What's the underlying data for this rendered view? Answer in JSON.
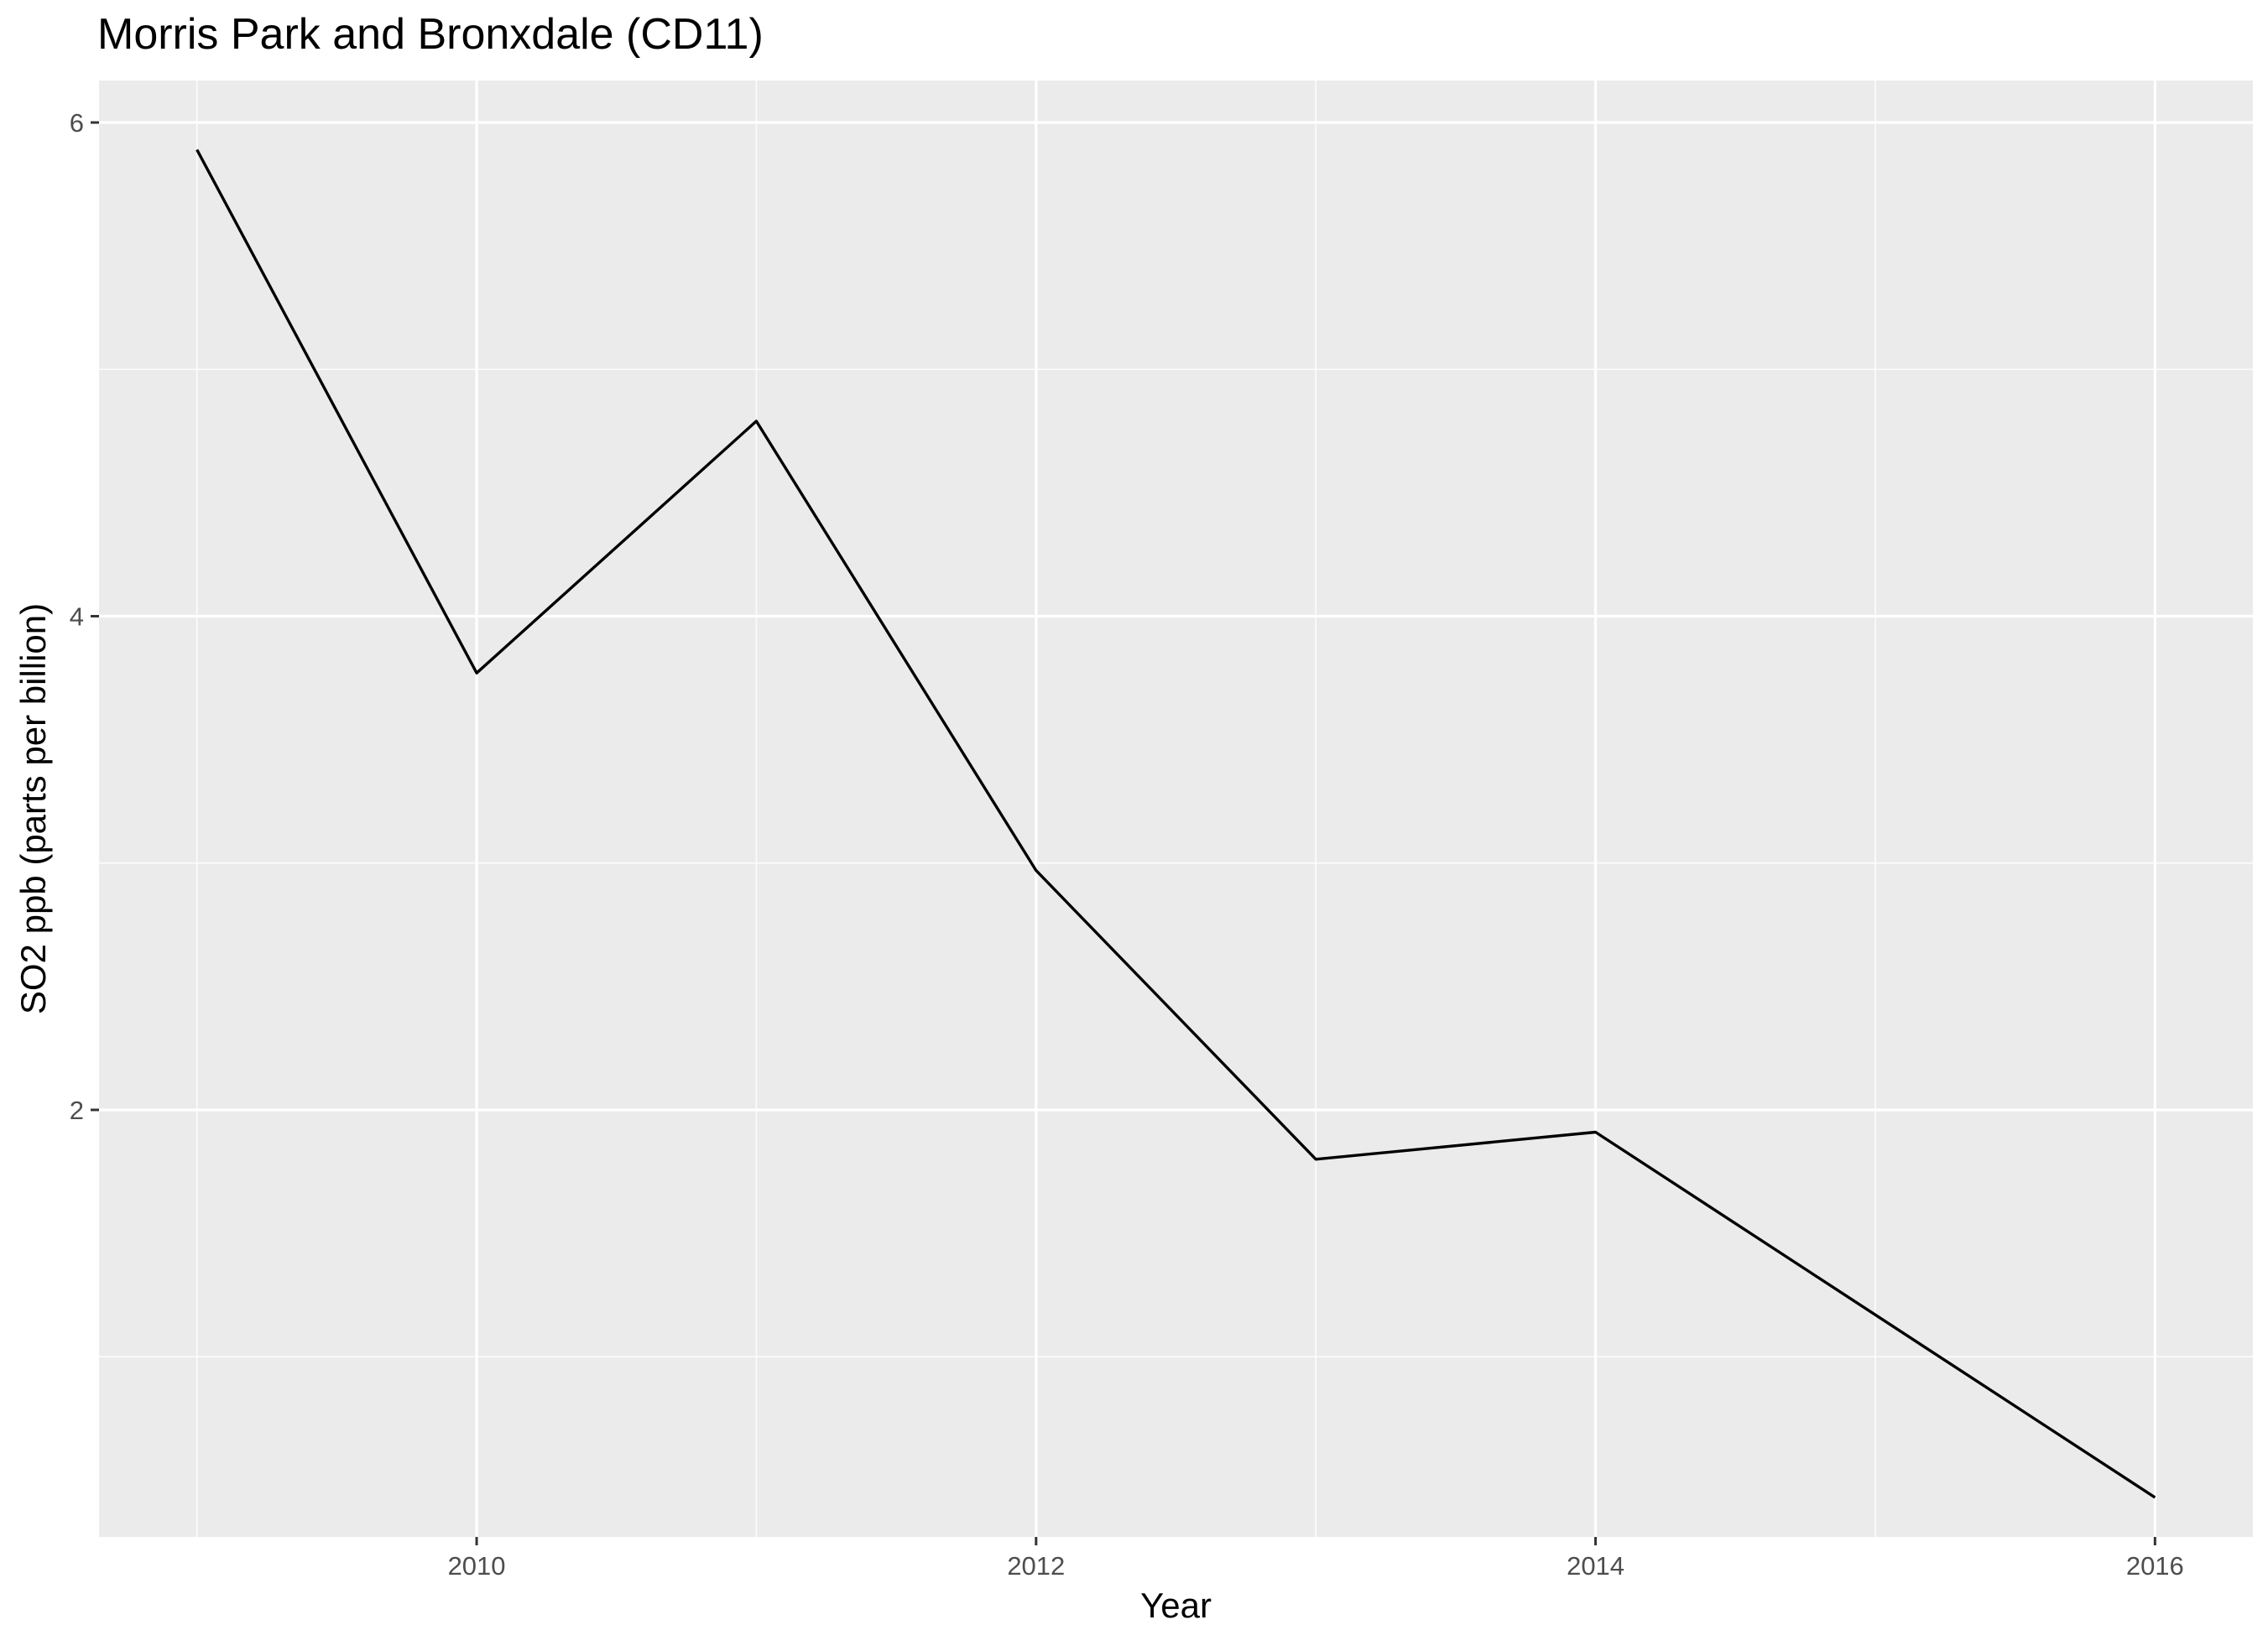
{
  "chart_data": {
    "type": "line",
    "title": "Morris Park and Bronxdale (CD11)",
    "xlabel": "Year",
    "ylabel": "SO2 ppb (parts per billion)",
    "x": [
      2009,
      2010,
      2011,
      2012,
      2013,
      2014,
      2016
    ],
    "series": [
      {
        "values": [
          5.89,
          3.77,
          4.79,
          2.97,
          1.8,
          1.91,
          0.43
        ]
      }
    ],
    "xlim": [
      2008.65,
      2016.35
    ],
    "ylim": [
      0.27,
      6.17
    ],
    "x_ticks": [
      2010,
      2012,
      2014,
      2016
    ],
    "x_minor_ticks": [
      2009,
      2011,
      2013,
      2015
    ],
    "y_ticks": [
      2,
      4,
      6
    ],
    "y_minor_ticks": [
      1,
      3,
      5
    ],
    "grid": true,
    "legend": "none",
    "colors": {
      "panel_background": "#ebebeb",
      "grid_major": "#ffffff",
      "line": "#000000"
    }
  }
}
